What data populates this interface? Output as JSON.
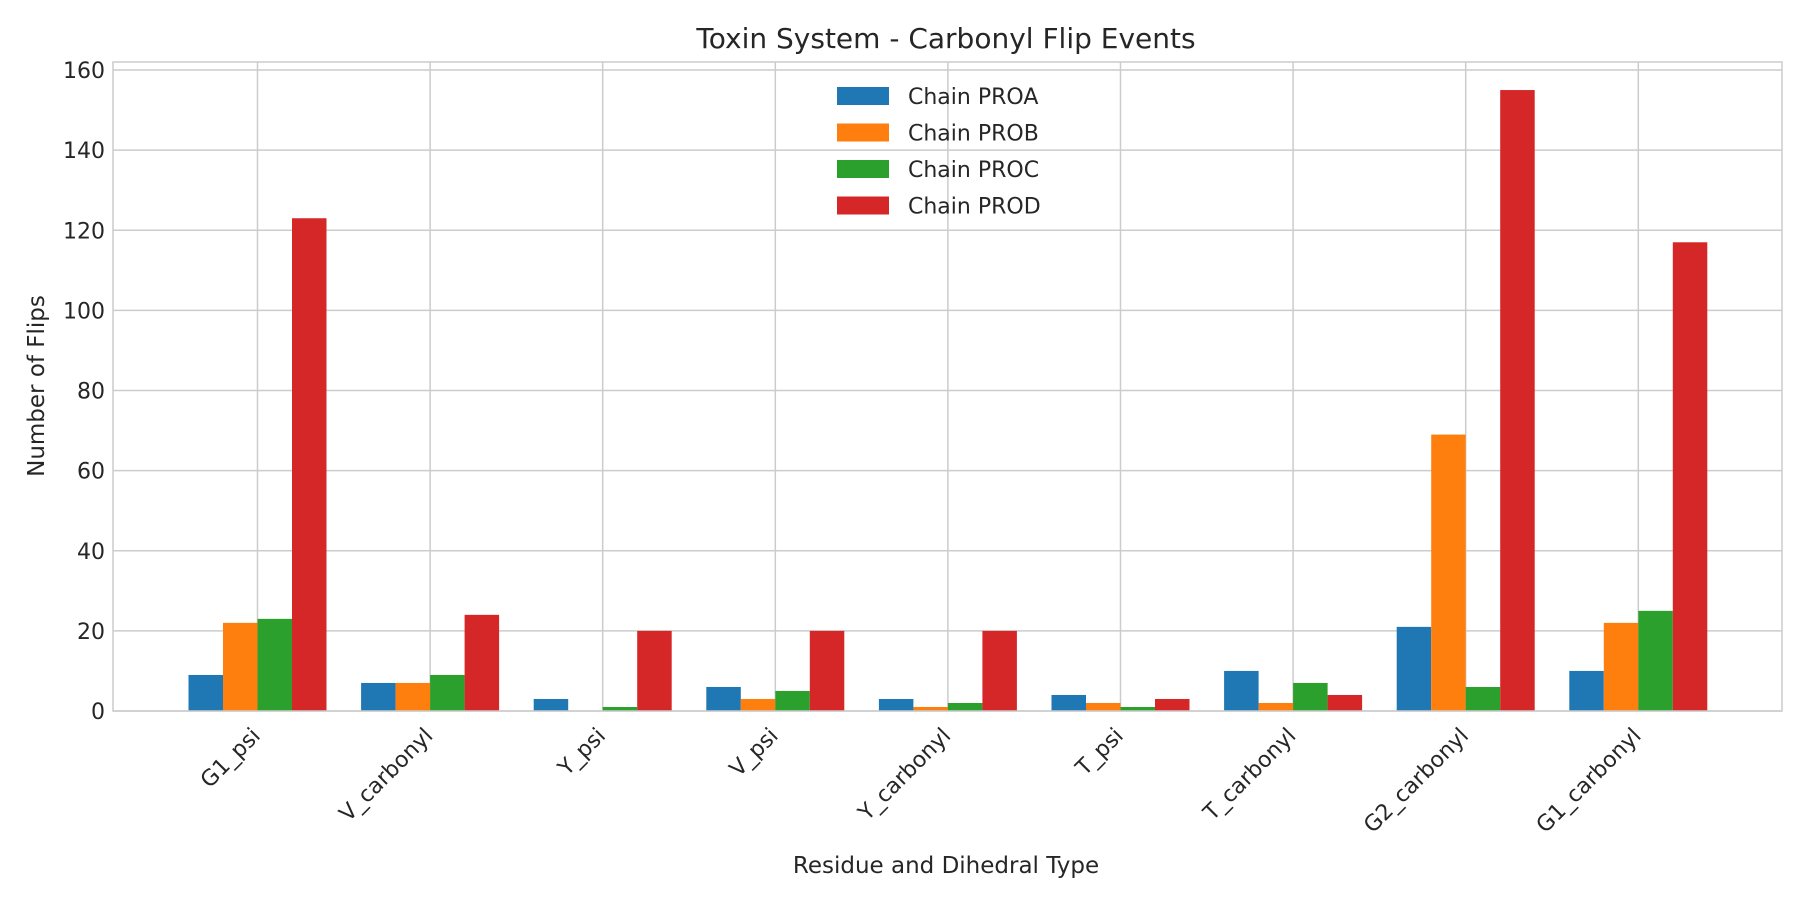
{
  "chart_data": {
    "type": "bar",
    "title": "Toxin System - Carbonyl Flip Events",
    "xlabel": "Residue and Dihedral Type",
    "ylabel": "Number of Flips",
    "categories": [
      "G1_psi",
      "V_carbonyl",
      "Y_psi",
      "V_psi",
      "Y_carbonyl",
      "T_psi",
      "T_carbonyl",
      "G2_carbonyl",
      "G1_carbonyl"
    ],
    "series": [
      {
        "name": "Chain PROA",
        "color": "#1f77b4",
        "values": [
          9,
          7,
          3,
          6,
          3,
          4,
          10,
          21,
          10
        ]
      },
      {
        "name": "Chain PROB",
        "color": "#ff7f0e",
        "values": [
          22,
          7,
          0,
          3,
          1,
          2,
          2,
          69,
          22
        ]
      },
      {
        "name": "Chain PROC",
        "color": "#2ca02c",
        "values": [
          23,
          9,
          1,
          5,
          2,
          1,
          7,
          6,
          25
        ]
      },
      {
        "name": "Chain PROD",
        "color": "#d62728",
        "values": [
          123,
          24,
          20,
          20,
          20,
          3,
          4,
          155,
          117
        ]
      }
    ],
    "ylim": [
      0,
      162
    ],
    "yticks": [
      0,
      20,
      40,
      60,
      80,
      100,
      120,
      140,
      160
    ],
    "grid": true,
    "legend_position": "top-center"
  }
}
